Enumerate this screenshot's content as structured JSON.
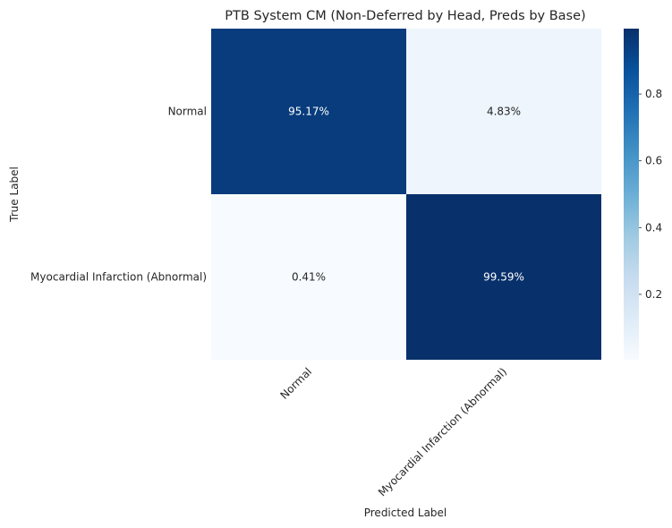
{
  "chart_data": {
    "type": "heatmap",
    "title": "PTB System CM (Non-Deferred by Head, Preds by Base)",
    "xlabel": "Predicted Label",
    "ylabel": "True Label",
    "x_categories": [
      "Normal",
      "Myocardial Infarction (Abnormal)"
    ],
    "y_categories": [
      "Normal",
      "Myocardial Infarction (Abnormal)"
    ],
    "values": [
      [
        0.9517,
        0.0483
      ],
      [
        0.0041,
        0.9959
      ]
    ],
    "cell_labels": [
      [
        "95.17%",
        "4.83%"
      ],
      [
        "0.41%",
        "99.59%"
      ]
    ],
    "colorbar": {
      "range": [
        0.0041,
        0.9959
      ],
      "ticks": [
        0.2,
        0.4,
        0.6,
        0.8
      ],
      "tick_labels": [
        "0.2",
        "0.4",
        "0.6",
        "0.8"
      ],
      "colormap": "Blues"
    }
  }
}
